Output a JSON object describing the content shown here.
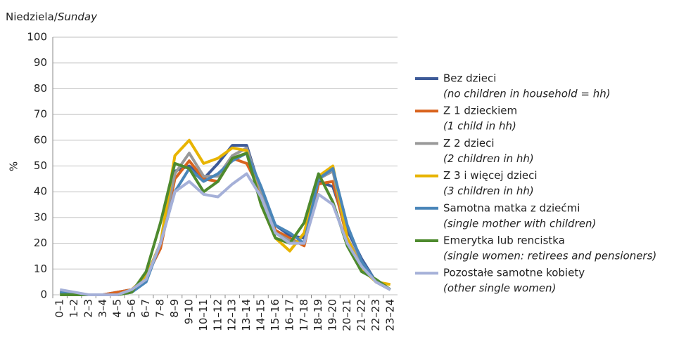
{
  "chart_data": {
    "type": "line",
    "title": [
      "Niedziela/",
      "Sunday"
    ],
    "y_label": "%",
    "categories": [
      "0–1",
      "1–2",
      "2–3",
      "3–4",
      "4–5",
      "5–6",
      "6–7",
      "7–8",
      "8–9",
      "9–10",
      "10–11",
      "11–12",
      "12–13",
      "13–14",
      "14–15",
      "15–16",
      "16–17",
      "17–18",
      "18–19",
      "19–20",
      "20–21",
      "21–22",
      "22–23",
      "23–24"
    ],
    "ylim": [
      0,
      100
    ],
    "yticks": [
      0,
      10,
      20,
      30,
      40,
      50,
      60,
      70,
      80,
      90,
      100
    ],
    "grid": true,
    "series": [
      {
        "name": "Bez dzieci",
        "name_en": "(no children in household = hh)",
        "color": "#3d5a98",
        "values": [
          1,
          0,
          0,
          0,
          1,
          2,
          7,
          20,
          48,
          50,
          45,
          51,
          58,
          58,
          40,
          27,
          23,
          22,
          44,
          42,
          25,
          14,
          5,
          2
        ]
      },
      {
        "name": "Z 1 dzieckiem",
        "name_en": "(1 child in hh)",
        "color": "#d9641e",
        "values": [
          1,
          0,
          0,
          0,
          1,
          2,
          7,
          18,
          45,
          52,
          45,
          44,
          53,
          51,
          40,
          25,
          22,
          19,
          43,
          44,
          22,
          12,
          5,
          2
        ]
      },
      {
        "name": "Z 2 dzieci",
        "name_en": "(2 children in hh)",
        "color": "#999999",
        "values": [
          1,
          0,
          0,
          0,
          0,
          1,
          7,
          20,
          47,
          55,
          46,
          46,
          54,
          57,
          40,
          24,
          21,
          20,
          45,
          48,
          22,
          12,
          5,
          2
        ]
      },
      {
        "name": "Z 3 i więcej dzieci",
        "name_en": "(3 children in hh)",
        "color": "#e8b400",
        "values": [
          1,
          0,
          0,
          0,
          0,
          2,
          7,
          20,
          54,
          60,
          51,
          53,
          57,
          56,
          35,
          22,
          17,
          24,
          46,
          50,
          22,
          10,
          5,
          4
        ]
      },
      {
        "name": "Samotna matka z dziećmi",
        "name_en": "(single mother with children)",
        "color": "#4a86b9",
        "values": [
          1,
          0,
          0,
          0,
          0,
          1,
          5,
          20,
          40,
          49,
          44,
          47,
          52,
          55,
          42,
          27,
          24,
          20,
          45,
          49,
          27,
          13,
          5,
          2
        ]
      },
      {
        "name": "Emerytka lub rencistka",
        "name_en": "(single women: retirees and pensioners)",
        "color": "#4e8a2e",
        "values": [
          0,
          0,
          0,
          0,
          0,
          1,
          9,
          28,
          51,
          49,
          40,
          44,
          53,
          55,
          35,
          22,
          20,
          28,
          47,
          36,
          19,
          9,
          6,
          2
        ]
      },
      {
        "name": "Pozostałe samotne kobiety",
        "name_en": "(other single women)",
        "color": "#a5b0d8",
        "values": [
          2,
          1,
          0,
          0,
          0,
          2,
          6,
          20,
          40,
          44,
          39,
          38,
          43,
          47,
          38,
          24,
          20,
          20,
          39,
          35,
          20,
          11,
          5,
          2
        ]
      }
    ]
  }
}
